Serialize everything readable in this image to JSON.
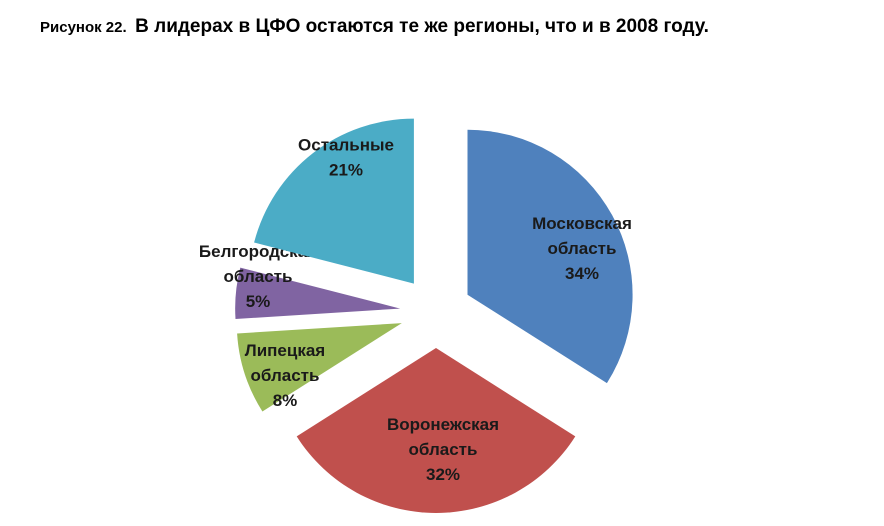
{
  "caption": {
    "lead": "Рисунок 22.",
    "title": "В лидерах в ЦФО остаются те же регионы, что и в 2008 году."
  },
  "chart_data": {
    "type": "pie",
    "exploded": true,
    "slices": [
      {
        "name": "Московская область",
        "label_lines": [
          "Московская",
          "область"
        ],
        "value": 34,
        "percent_label": "34%",
        "color": "#4F81BD"
      },
      {
        "name": "Воронежская область",
        "label_lines": [
          "Воронежская",
          "область"
        ],
        "value": 32,
        "percent_label": "32%",
        "color": "#C0504D"
      },
      {
        "name": "Липецкая область",
        "label_lines": [
          "Липецкая",
          "область"
        ],
        "value": 8,
        "percent_label": "8%",
        "color": "#9BBB59"
      },
      {
        "name": "Белгородская область",
        "label_lines": [
          "Белгородская",
          "область"
        ],
        "value": 5,
        "percent_label": "5%",
        "color": "#8064A2"
      },
      {
        "name": "Остальные",
        "label_lines": [
          "Остальные"
        ],
        "value": 21,
        "percent_label": "21%",
        "color": "#4BACC6"
      }
    ]
  }
}
